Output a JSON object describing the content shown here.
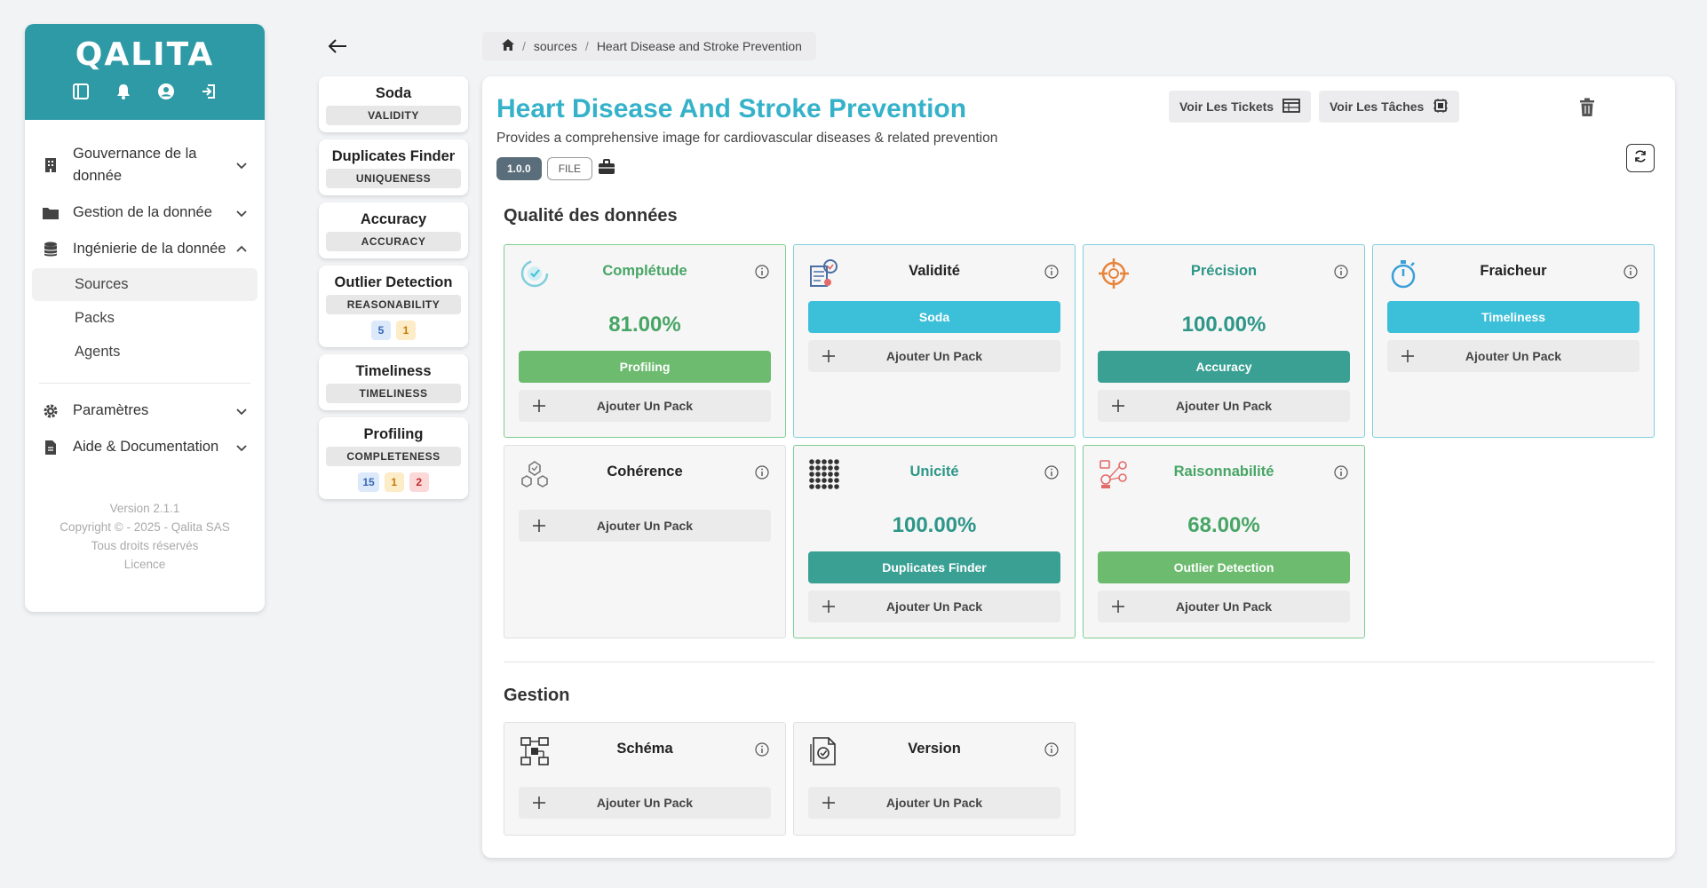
{
  "sidebar": {
    "logo": "QALITA",
    "nav": [
      {
        "label": "Gouvernance de la donnée"
      },
      {
        "label": "Gestion de la donnée"
      },
      {
        "label": "Ingénierie de la donnée"
      },
      {
        "label": "Paramètres"
      },
      {
        "label": "Aide & Documentation"
      }
    ],
    "subitems": [
      "Sources",
      "Packs",
      "Agents"
    ],
    "footer": {
      "version": "Version 2.1.1",
      "copyright": "Copyright © - 2025 - Qalita SAS",
      "rights": "Tous droits réservés",
      "licence": "Licence"
    }
  },
  "breadcrumb": {
    "sources": "sources",
    "sep": "/",
    "current": "Heart Disease and Stroke Prevention"
  },
  "packs": [
    {
      "name": "Soda",
      "tag": "VALIDITY"
    },
    {
      "name": "Duplicates Finder",
      "tag": "UNIQUENESS"
    },
    {
      "name": "Accuracy",
      "tag": "ACCURACY"
    },
    {
      "name": "Outlier Detection",
      "tag": "REASONABILITY",
      "badges": [
        "5",
        "1"
      ]
    },
    {
      "name": "Timeliness",
      "tag": "TIMELINESS"
    },
    {
      "name": "Profiling",
      "tag": "COMPLETENESS",
      "badges": [
        "15",
        "1",
        "2"
      ]
    }
  ],
  "source": {
    "title": "Heart Disease And Stroke Prevention",
    "description": "Provides a comprehensive image for cardiovascular diseases & related prevention",
    "version": "1.0.0",
    "type": "FILE"
  },
  "toolbar": {
    "tickets": "Voir Les Tickets",
    "tasks": "Voir Les Tâches"
  },
  "sections": {
    "quality": "Qualité des données",
    "gestion": "Gestion"
  },
  "add_pack": "Ajouter Un Pack",
  "quality": {
    "completude": {
      "title": "Complétude",
      "score": "81.00%",
      "pack": "Profiling"
    },
    "validite": {
      "title": "Validité",
      "pack": "Soda"
    },
    "precision": {
      "title": "Précision",
      "score": "100.00%",
      "pack": "Accuracy"
    },
    "fraicheur": {
      "title": "Fraicheur",
      "pack": "Timeliness"
    },
    "coherence": {
      "title": "Cohérence"
    },
    "unicite": {
      "title": "Unicité",
      "score": "100.00%",
      "pack": "Duplicates Finder"
    },
    "raisonnabilite": {
      "title": "Raisonnabilité",
      "score": "68.00%",
      "pack": "Outlier Detection"
    }
  },
  "gestion": {
    "schema": {
      "title": "Schéma"
    },
    "version": {
      "title": "Version"
    }
  },
  "colors": {
    "brand": "#2e9aa6",
    "title": "#35b2c9",
    "green": "#6cbb6e",
    "teal": "#3aa094",
    "cyan": "#3cbfd9"
  }
}
